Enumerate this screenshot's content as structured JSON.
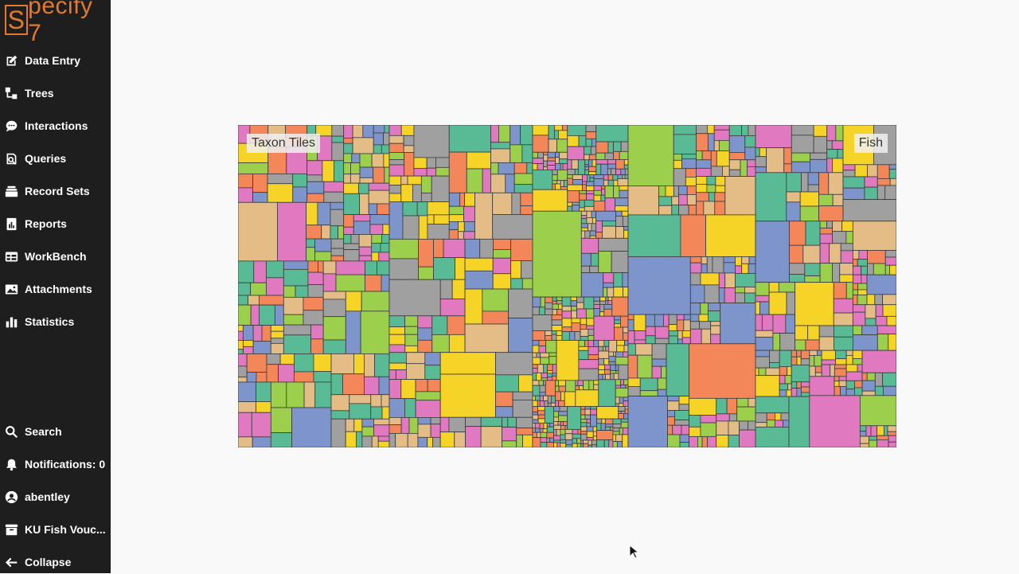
{
  "app": {
    "logo_text": "pecify 7",
    "logo_letter": "S"
  },
  "sidebar": {
    "items": [
      {
        "label": "Data Entry",
        "icon": "edit-icon"
      },
      {
        "label": "Trees",
        "icon": "tree-icon"
      },
      {
        "label": "Interactions",
        "icon": "chat-icon"
      },
      {
        "label": "Queries",
        "icon": "query-icon"
      },
      {
        "label": "Record Sets",
        "icon": "layers-icon"
      },
      {
        "label": "Reports",
        "icon": "report-icon"
      },
      {
        "label": "WorkBench",
        "icon": "table-icon"
      },
      {
        "label": "Attachments",
        "icon": "image-icon"
      },
      {
        "label": "Statistics",
        "icon": "bar-chart-icon"
      }
    ],
    "bottom_items": [
      {
        "label": "Search",
        "icon": "search-icon"
      },
      {
        "label": "Notifications: 0",
        "icon": "bell-icon"
      },
      {
        "label": "abentley",
        "icon": "user-icon"
      },
      {
        "label": "KU Fish Vouc...",
        "icon": "archive-icon"
      },
      {
        "label": "Collapse",
        "icon": "arrow-left-icon"
      }
    ]
  },
  "treemap": {
    "title_left": "Taxon Tiles",
    "title_right": "Fish",
    "palette": [
      "#f5d327",
      "#e079c0",
      "#7e95cb",
      "#9ccf4b",
      "#a0a0a0",
      "#59bb95",
      "#f3875a",
      "#e3bc86"
    ]
  }
}
